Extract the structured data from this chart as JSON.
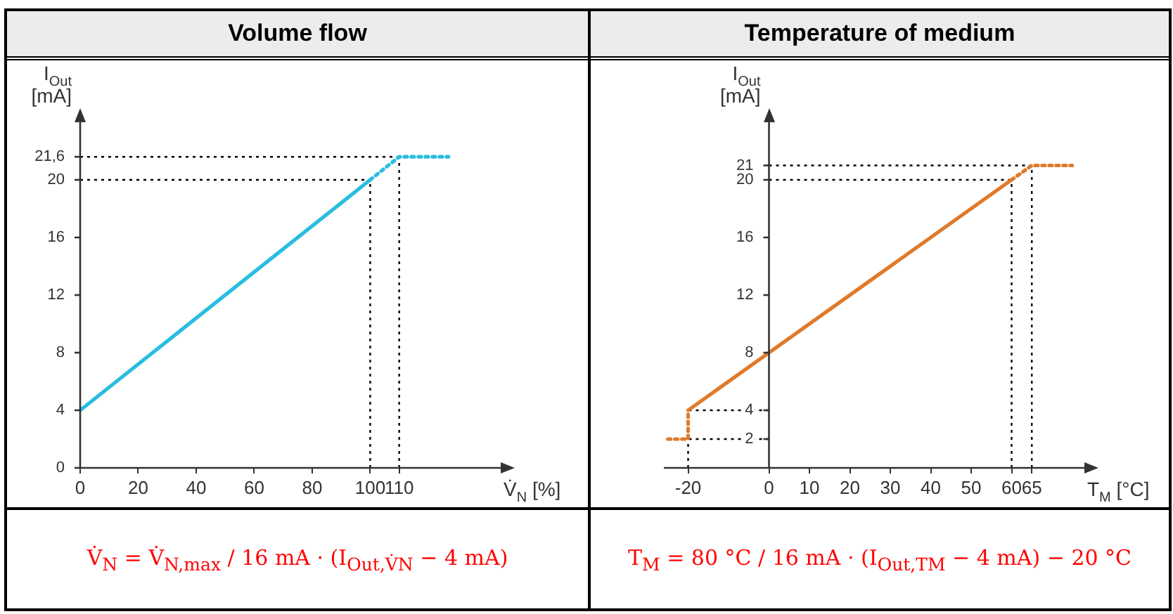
{
  "chart_data": [
    {
      "type": "line",
      "title": "Volume flow",
      "xlabel": "V̇$_{N}$ [%]",
      "ylabel": "I$_{Out}$ [mA]",
      "marker": "none",
      "xlim": [
        0,
        145
      ],
      "ylim": [
        0,
        24
      ],
      "xticks": [
        0,
        20,
        40,
        60,
        80,
        100,
        110
      ],
      "yticks": [
        0,
        4,
        8,
        12,
        16,
        20,
        {
          "value": 21.6,
          "label": "21,6"
        }
      ],
      "series": [
        {
          "color": "#29bde0",
          "line_style": "solid",
          "x": [
            0,
            100
          ],
          "values": [
            4,
            20
          ]
        },
        {
          "color": "#29bde0",
          "line_style": "dotted",
          "x": [
            100,
            110,
            127
          ],
          "values": [
            20,
            21.6,
            21.6
          ]
        }
      ],
      "ref_lines": [
        {
          "axis": "y",
          "value": 20,
          "color": "#000000",
          "line_style": "dotted"
        },
        {
          "axis": "y",
          "value": 21.6,
          "color": "#000000",
          "line_style": "dotted"
        },
        {
          "axis": "x",
          "value": 100,
          "color": "#000000",
          "line_style": "dotted"
        },
        {
          "axis": "x",
          "value": 110,
          "color": "#000000",
          "line_style": "dotted"
        }
      ],
      "annotations": [
        "V̇$_{N}$ = V̇$_{N,max}$ / 16 mA · (I$_{Out,V̇N}$ − 4 mA)"
      ]
    },
    {
      "type": "line",
      "title": "Temperature of medium",
      "xlabel": "T$_{M}$ [°C]",
      "ylabel": "I$_{Out}$ [mA]",
      "marker": "none",
      "xlim": [
        -26,
        78
      ],
      "ylim": [
        0,
        24
      ],
      "xticks": [
        -20,
        0,
        10,
        20,
        30,
        40,
        50,
        60,
        65
      ],
      "yticks": [
        2,
        4,
        8,
        12,
        16,
        20,
        21
      ],
      "series": [
        {
          "color": "#e07a2a",
          "line_style": "dotted",
          "x": [
            -25,
            -20,
            -20
          ],
          "values": [
            2,
            2,
            4
          ]
        },
        {
          "color": "#e07a2a",
          "line_style": "solid",
          "x": [
            -20,
            60
          ],
          "values": [
            4,
            20
          ]
        },
        {
          "color": "#e07a2a",
          "line_style": "dotted",
          "x": [
            60,
            65,
            75
          ],
          "values": [
            20,
            21,
            21
          ]
        }
      ],
      "ref_lines": [
        {
          "axis": "y",
          "value": 2,
          "color": "#000000",
          "line_style": "dotted"
        },
        {
          "axis": "y",
          "value": 4,
          "color": "#000000",
          "line_style": "dotted"
        },
        {
          "axis": "y",
          "value": 20,
          "color": "#000000",
          "line_style": "dotted"
        },
        {
          "axis": "y",
          "value": 21,
          "color": "#000000",
          "line_style": "dotted"
        },
        {
          "axis": "x",
          "value": -20,
          "color": "#000000",
          "line_style": "dotted"
        },
        {
          "axis": "x",
          "value": 60,
          "color": "#000000",
          "line_style": "dotted"
        },
        {
          "axis": "x",
          "value": 65,
          "color": "#000000",
          "line_style": "dotted"
        }
      ],
      "annotations": [
        "T$_{M}$ = 80 °C / 16 mA · (I$_{Out,TM}$ − 4 mA) − 20 °C"
      ]
    }
  ]
}
